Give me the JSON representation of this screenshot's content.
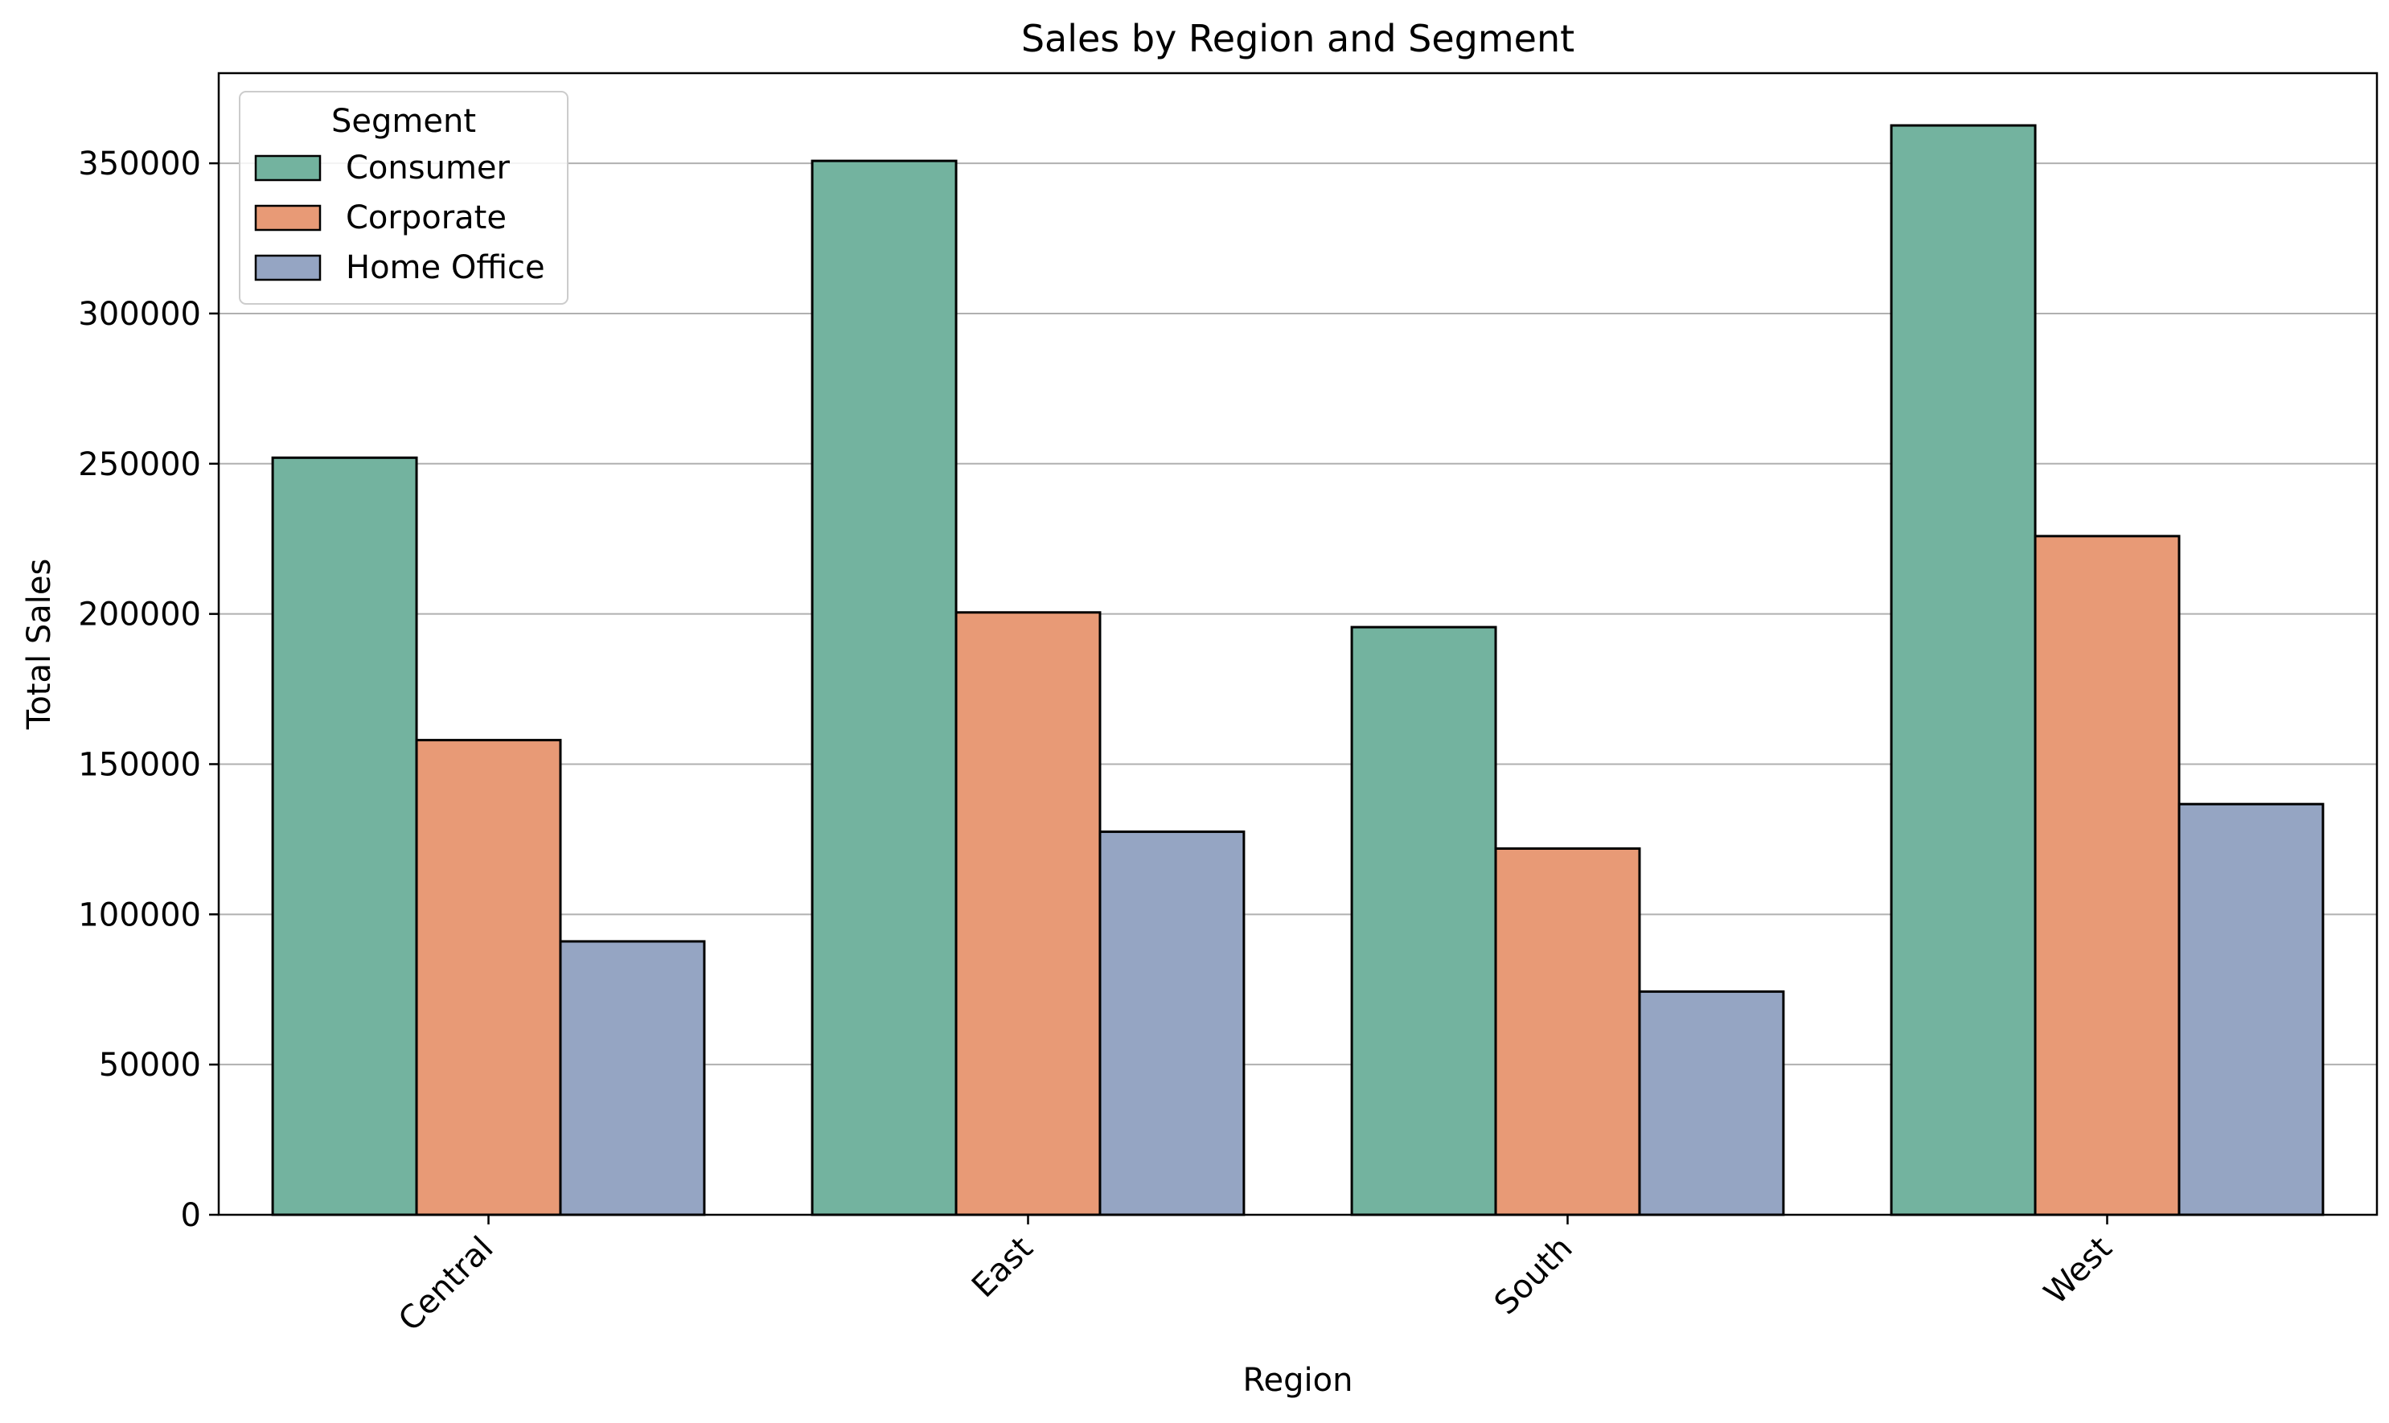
{
  "chart_data": {
    "type": "bar",
    "title": "Sales by Region and Segment",
    "xlabel": "Region",
    "ylabel": "Total Sales",
    "categories": [
      "Central",
      "East",
      "South",
      "West"
    ],
    "series": [
      {
        "name": "Consumer",
        "color": "#73b39f",
        "values": [
          252000,
          350800,
          195600,
          362600
        ]
      },
      {
        "name": "Corporate",
        "color": "#e89a76",
        "values": [
          158000,
          200500,
          121900,
          225900
        ]
      },
      {
        "name": "Home Office",
        "color": "#95a5c3",
        "values": [
          91000,
          127500,
          74300,
          136700
        ]
      }
    ],
    "ylim": [
      0,
      380000
    ],
    "yticks": [
      0,
      50000,
      100000,
      150000,
      200000,
      250000,
      300000,
      350000
    ],
    "ytick_labels": [
      "0",
      "50000",
      "100000",
      "150000",
      "200000",
      "250000",
      "300000",
      "350000"
    ],
    "grid": "horizontal",
    "legend": {
      "title": "Segment",
      "placement": "top-left"
    },
    "xtick_rotation": 45
  }
}
